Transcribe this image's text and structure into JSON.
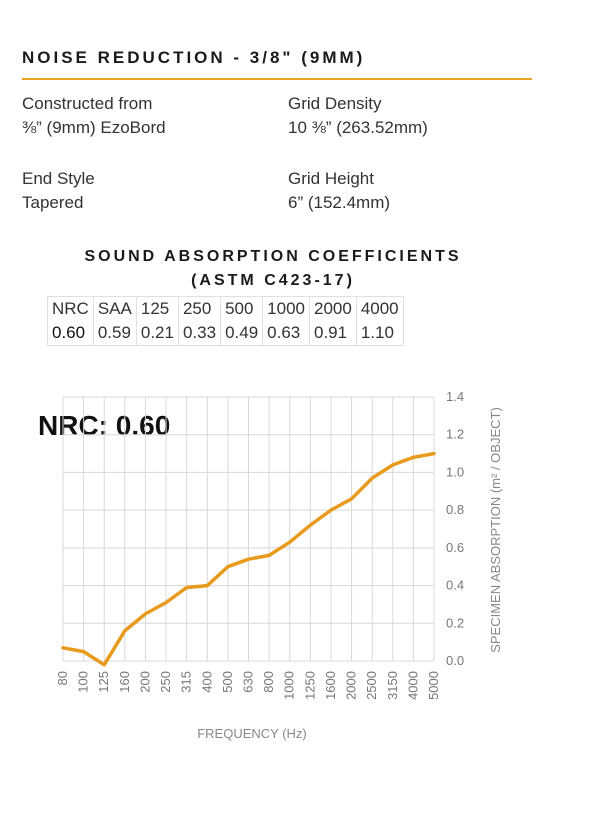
{
  "header": {
    "title": "NOISE  REDUCTION - 3/8\" (9MM)"
  },
  "specs": {
    "constructed": {
      "label": "Constructed from",
      "value": "⅜” (9mm) EzoBord"
    },
    "grid_density": {
      "label": "Grid Density",
      "value": "10 ⅜” (263.52mm)"
    },
    "end_style": {
      "label": "End Style",
      "value": "Tapered"
    },
    "grid_height": {
      "label": "Grid Height",
      "value": "6” (152.4mm)"
    }
  },
  "coefficients": {
    "title_line1": "SOUND ABSORPTION COEFFICIENTS",
    "title_line2": "(ASTM C423-17)",
    "headers": [
      "NRC",
      "SAA",
      "125",
      "250",
      "500",
      "1000",
      "2000",
      "4000"
    ],
    "values": [
      "0.60",
      "0.59",
      "0.21",
      "0.33",
      "0.49",
      "0.63",
      "0.91",
      "1.10"
    ]
  },
  "nrc_label": "NRC: 0.60",
  "colors": {
    "accent": "#e8a323",
    "line": "#e89a1c",
    "grid": "#d8d8d8"
  },
  "chart_data": {
    "type": "line",
    "xlabel": "FREQUENCY (Hz)",
    "ylabel": "SPECIMEN ABSORPTION (m² / OBJECT)",
    "categories": [
      "80",
      "100",
      "125",
      "160",
      "200",
      "250",
      "315",
      "400",
      "500",
      "630",
      "800",
      "1000",
      "1250",
      "1600",
      "2000",
      "2500",
      "3150",
      "4000",
      "5000"
    ],
    "values": [
      0.07,
      0.05,
      -0.02,
      0.16,
      0.25,
      0.31,
      0.39,
      0.4,
      0.5,
      0.54,
      0.56,
      0.63,
      0.72,
      0.8,
      0.86,
      0.97,
      1.04,
      1.08,
      1.1
    ],
    "ylim": [
      0.0,
      1.4
    ],
    "yticks": [
      "0.0",
      "0.2",
      "0.4",
      "0.6",
      "0.8",
      "1.0",
      "1.2",
      "1.4"
    ],
    "grid": true,
    "y_axis_side": "right"
  }
}
